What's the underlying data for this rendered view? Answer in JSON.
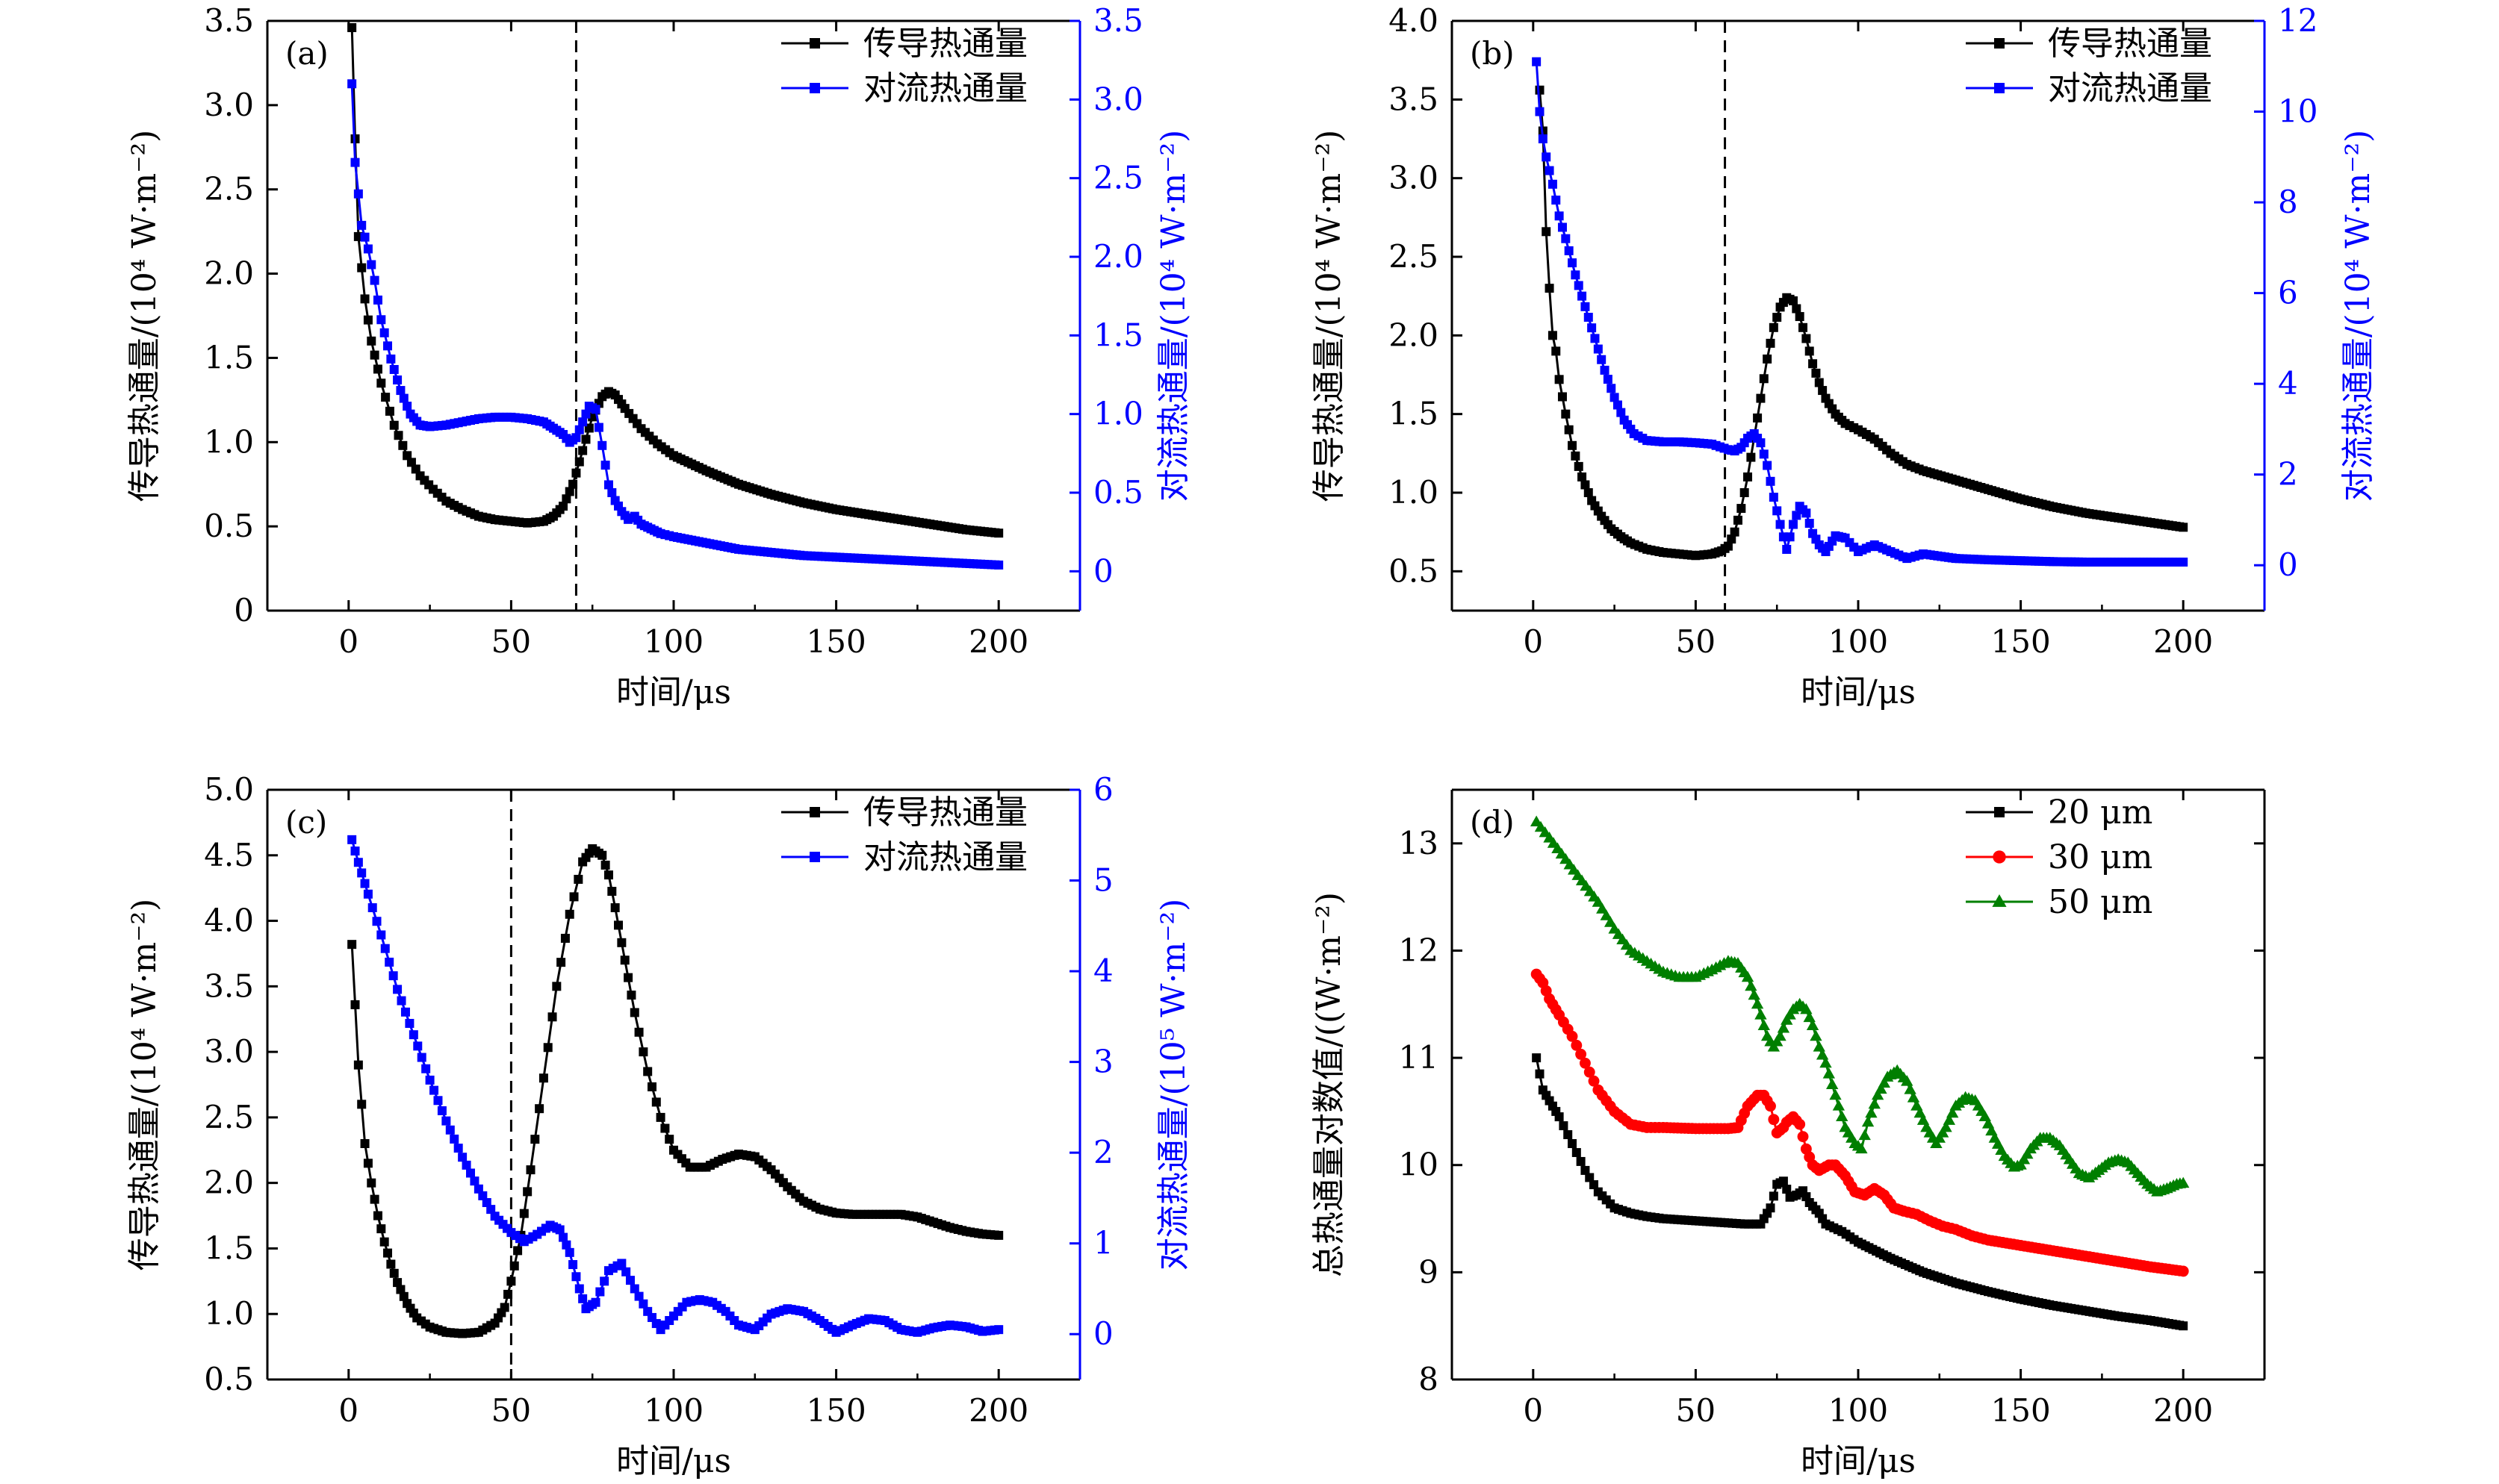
{
  "chart_data": [
    {
      "type": "line",
      "panel_label": "(a)",
      "xlabel": "时间/μs",
      "ylabel": "传导热通量/(10⁴ W·m⁻²)",
      "y2label": "对流热通量/(10⁴ W·m⁻²)",
      "xlim": [
        -25,
        225
      ],
      "ylim": [
        0,
        3.5
      ],
      "y2lim": [
        -0.25,
        3.5
      ],
      "xticks": [
        "0",
        "50",
        "100",
        "150",
        "200"
      ],
      "yticks": [
        "0",
        "0.5",
        "1.0",
        "1.5",
        "2.0",
        "2.5",
        "3.0",
        "3.5"
      ],
      "y2ticks": [
        "0",
        "0.5",
        "1.0",
        "1.5",
        "2.0",
        "2.5",
        "3.0",
        "3.5"
      ],
      "vline_x": 70,
      "legend_position": "top-right",
      "series": [
        {
          "name": "传导热通量",
          "axis": "left",
          "color": "#000000",
          "marker": "square",
          "x": [
            1,
            2,
            3,
            5,
            7,
            10,
            14,
            18,
            22,
            26,
            30,
            35,
            40,
            45,
            50,
            55,
            60,
            63,
            66,
            69,
            72,
            75,
            78,
            80,
            82,
            85,
            90,
            95,
            100,
            110,
            120,
            130,
            140,
            150,
            160,
            170,
            180,
            190,
            200
          ],
          "values": [
            3.46,
            2.8,
            2.22,
            1.85,
            1.6,
            1.35,
            1.1,
            0.92,
            0.8,
            0.72,
            0.65,
            0.6,
            0.56,
            0.54,
            0.53,
            0.52,
            0.53,
            0.56,
            0.62,
            0.75,
            0.95,
            1.15,
            1.27,
            1.3,
            1.28,
            1.2,
            1.08,
            0.99,
            0.92,
            0.83,
            0.75,
            0.69,
            0.64,
            0.6,
            0.57,
            0.54,
            0.51,
            0.48,
            0.46
          ]
        },
        {
          "name": "对流热通量",
          "axis": "right",
          "color": "#0000ff",
          "marker": "square",
          "x": [
            1,
            2,
            3,
            4,
            6,
            8,
            10,
            13,
            16,
            19,
            22,
            25,
            30,
            35,
            40,
            45,
            50,
            55,
            60,
            63,
            66,
            68,
            70,
            72,
            74,
            76,
            78,
            80,
            82,
            84,
            86,
            88,
            90,
            93,
            96,
            100,
            110,
            120,
            130,
            140,
            150,
            160,
            170,
            180,
            190,
            200
          ],
          "values": [
            3.1,
            2.6,
            2.4,
            2.2,
            2.05,
            1.85,
            1.6,
            1.35,
            1.15,
            1.0,
            0.93,
            0.92,
            0.93,
            0.95,
            0.97,
            0.98,
            0.98,
            0.97,
            0.95,
            0.91,
            0.87,
            0.82,
            0.85,
            0.95,
            1.05,
            1.03,
            0.8,
            0.55,
            0.45,
            0.38,
            0.33,
            0.35,
            0.3,
            0.27,
            0.24,
            0.22,
            0.18,
            0.14,
            0.12,
            0.1,
            0.09,
            0.08,
            0.07,
            0.06,
            0.05,
            0.04
          ]
        }
      ]
    },
    {
      "type": "line",
      "panel_label": "(b)",
      "xlabel": "时间/μs",
      "ylabel": "传导热通量/(10⁴ W·m⁻²)",
      "y2label": "对流热通量/(10⁴ W·m⁻²)",
      "xlim": [
        -25,
        225
      ],
      "ylim": [
        0.25,
        4.0
      ],
      "y2lim": [
        -1,
        12
      ],
      "xticks": [
        "0",
        "50",
        "100",
        "150",
        "200"
      ],
      "yticks": [
        "0.5",
        "1.0",
        "1.5",
        "2.0",
        "2.5",
        "3.0",
        "3.5",
        "4.0"
      ],
      "y2ticks": [
        "0",
        "2",
        "4",
        "6",
        "8",
        "10",
        "12"
      ],
      "vline_x": 59,
      "legend_position": "top-right",
      "series": [
        {
          "name": "传导热通量",
          "axis": "left",
          "color": "#000000",
          "marker": "square",
          "x": [
            2,
            3,
            4,
            5,
            6,
            7,
            8,
            10,
            12,
            15,
            18,
            21,
            24,
            27,
            30,
            35,
            40,
            45,
            50,
            55,
            58,
            60,
            62,
            64,
            66,
            68,
            70,
            72,
            74,
            76,
            78,
            80,
            82,
            84,
            86,
            88,
            90,
            93,
            96,
            100,
            105,
            110,
            115,
            120,
            130,
            140,
            150,
            160,
            170,
            180,
            190,
            200
          ],
          "values": [
            3.56,
            3.3,
            2.66,
            2.3,
            2.0,
            1.9,
            1.72,
            1.5,
            1.3,
            1.1,
            0.95,
            0.85,
            0.77,
            0.72,
            0.68,
            0.64,
            0.62,
            0.61,
            0.6,
            0.61,
            0.63,
            0.66,
            0.75,
            0.9,
            1.1,
            1.35,
            1.6,
            1.85,
            2.05,
            2.18,
            2.24,
            2.22,
            2.12,
            1.98,
            1.82,
            1.7,
            1.6,
            1.5,
            1.44,
            1.4,
            1.34,
            1.25,
            1.18,
            1.14,
            1.08,
            1.02,
            0.96,
            0.91,
            0.87,
            0.84,
            0.81,
            0.78
          ]
        },
        {
          "name": "对流热通量",
          "axis": "right",
          "color": "#0000ff",
          "marker": "square",
          "x": [
            1,
            2,
            3,
            4,
            6,
            8,
            10,
            13,
            16,
            19,
            22,
            25,
            28,
            31,
            35,
            40,
            45,
            50,
            55,
            60,
            62,
            64,
            66,
            68,
            70,
            72,
            74,
            76,
            78,
            80,
            82,
            84,
            86,
            88,
            90,
            93,
            96,
            100,
            105,
            110,
            115,
            120,
            130,
            140,
            150,
            160,
            170,
            180,
            190,
            200
          ],
          "values": [
            11.1,
            10.0,
            9.4,
            9.0,
            8.4,
            7.7,
            7.2,
            6.4,
            5.7,
            5.0,
            4.3,
            3.7,
            3.2,
            2.9,
            2.75,
            2.72,
            2.72,
            2.7,
            2.67,
            2.55,
            2.52,
            2.6,
            2.8,
            2.9,
            2.7,
            2.2,
            1.5,
            0.9,
            0.35,
            0.9,
            1.3,
            1.15,
            0.7,
            0.45,
            0.3,
            0.65,
            0.6,
            0.3,
            0.45,
            0.3,
            0.15,
            0.25,
            0.15,
            0.12,
            0.1,
            0.08,
            0.07,
            0.07,
            0.07,
            0.07
          ]
        }
      ]
    },
    {
      "type": "line",
      "panel_label": "(c)",
      "xlabel": "时间/μs",
      "ylabel": "传导热通量/(10⁴ W·m⁻²)",
      "y2label": "对流热通量/(10⁵ W·m⁻²)",
      "xlim": [
        -25,
        225
      ],
      "ylim": [
        0.5,
        5.0
      ],
      "y2lim": [
        -0.5,
        6
      ],
      "xticks": [
        "0",
        "50",
        "100",
        "150",
        "200"
      ],
      "yticks": [
        "0.5",
        "1.0",
        "1.5",
        "2.0",
        "2.5",
        "3.0",
        "3.5",
        "4.0",
        "4.5",
        "5.0"
      ],
      "y2ticks": [
        "0",
        "1",
        "2",
        "3",
        "4",
        "5",
        "6"
      ],
      "vline_x": 50,
      "legend_position": "top-right",
      "series": [
        {
          "name": "传导热通量",
          "axis": "left",
          "color": "#000000",
          "marker": "square",
          "x": [
            1,
            3,
            5,
            7,
            9,
            11,
            13,
            15,
            18,
            21,
            25,
            30,
            35,
            40,
            45,
            48,
            50,
            53,
            56,
            60,
            64,
            68,
            72,
            75,
            78,
            80,
            82,
            85,
            88,
            92,
            96,
            100,
            105,
            110,
            115,
            120,
            125,
            130,
            135,
            140,
            145,
            150,
            155,
            160,
            170,
            175,
            180,
            185,
            190,
            195,
            200
          ],
          "values": [
            3.82,
            2.9,
            2.3,
            2.0,
            1.75,
            1.55,
            1.38,
            1.24,
            1.08,
            0.97,
            0.9,
            0.86,
            0.85,
            0.86,
            0.93,
            1.05,
            1.25,
            1.6,
            2.1,
            2.8,
            3.5,
            4.05,
            4.45,
            4.55,
            4.5,
            4.35,
            4.1,
            3.7,
            3.3,
            2.85,
            2.5,
            2.25,
            2.12,
            2.12,
            2.18,
            2.22,
            2.2,
            2.1,
            1.97,
            1.86,
            1.8,
            1.77,
            1.76,
            1.76,
            1.76,
            1.74,
            1.7,
            1.66,
            1.63,
            1.61,
            1.6
          ]
        },
        {
          "name": "对流热通量",
          "axis": "right",
          "color": "#0000ff",
          "marker": "square",
          "x": [
            1,
            3,
            6,
            10,
            15,
            20,
            25,
            30,
            35,
            40,
            45,
            50,
            54,
            58,
            62,
            65,
            68,
            71,
            73,
            76,
            80,
            84,
            88,
            92,
            96,
            100,
            104,
            108,
            112,
            116,
            120,
            125,
            130,
            135,
            140,
            145,
            150,
            155,
            160,
            165,
            170,
            175,
            180,
            185,
            190,
            195,
            200
          ],
          "values": [
            5.45,
            5.2,
            4.85,
            4.4,
            3.8,
            3.3,
            2.8,
            2.35,
            1.95,
            1.6,
            1.3,
            1.12,
            1.02,
            1.1,
            1.2,
            1.15,
            0.9,
            0.5,
            0.28,
            0.35,
            0.7,
            0.78,
            0.5,
            0.25,
            0.05,
            0.2,
            0.35,
            0.38,
            0.35,
            0.25,
            0.1,
            0.05,
            0.22,
            0.28,
            0.25,
            0.15,
            0.02,
            0.1,
            0.17,
            0.15,
            0.05,
            0.02,
            0.07,
            0.1,
            0.08,
            0.03,
            0.05
          ]
        }
      ]
    },
    {
      "type": "line",
      "panel_label": "(d)",
      "xlabel": "时间/μs",
      "ylabel": "总热通量对数值/((W·m⁻²)",
      "xlim": [
        -25,
        225
      ],
      "ylim": [
        8,
        13.5
      ],
      "xticks": [
        "0",
        "50",
        "100",
        "150",
        "200"
      ],
      "yticks": [
        "8",
        "9",
        "10",
        "11",
        "12",
        "13"
      ],
      "legend_position": "top-right",
      "series": [
        {
          "name": "20 μm",
          "axis": "left",
          "color": "#000000",
          "marker": "square",
          "x": [
            1,
            3,
            5,
            8,
            12,
            16,
            20,
            25,
            30,
            35,
            40,
            50,
            60,
            65,
            70,
            73,
            75,
            77,
            79,
            81,
            83,
            85,
            88,
            90,
            95,
            100,
            110,
            120,
            130,
            140,
            150,
            160,
            170,
            180,
            190,
            200
          ],
          "values": [
            11.0,
            10.7,
            10.6,
            10.45,
            10.2,
            9.95,
            9.75,
            9.6,
            9.55,
            9.52,
            9.5,
            9.48,
            9.46,
            9.45,
            9.45,
            9.6,
            9.82,
            9.85,
            9.7,
            9.72,
            9.76,
            9.65,
            9.55,
            9.45,
            9.38,
            9.28,
            9.13,
            9.0,
            8.9,
            8.82,
            8.75,
            8.69,
            8.64,
            8.59,
            8.55,
            8.5
          ]
        },
        {
          "name": "30 μm",
          "axis": "left",
          "color": "#ff0000",
          "marker": "circle",
          "x": [
            1,
            3,
            5,
            8,
            12,
            16,
            20,
            25,
            30,
            35,
            40,
            50,
            60,
            63,
            66,
            69,
            71,
            73,
            75,
            77,
            78,
            80,
            82,
            84,
            86,
            88,
            91,
            93,
            96,
            99,
            102,
            105,
            108,
            111,
            114,
            118,
            122,
            126,
            130,
            135,
            140,
            150,
            160,
            170,
            180,
            190,
            200
          ],
          "values": [
            11.78,
            11.7,
            11.55,
            11.4,
            11.2,
            10.95,
            10.7,
            10.5,
            10.38,
            10.35,
            10.35,
            10.34,
            10.34,
            10.35,
            10.55,
            10.65,
            10.65,
            10.55,
            10.3,
            10.35,
            10.4,
            10.45,
            10.38,
            10.15,
            10.0,
            9.95,
            10.0,
            10.0,
            9.9,
            9.75,
            9.72,
            9.78,
            9.72,
            9.6,
            9.57,
            9.54,
            9.48,
            9.43,
            9.4,
            9.34,
            9.3,
            9.25,
            9.2,
            9.15,
            9.1,
            9.05,
            9.01
          ]
        },
        {
          "name": "50 μm",
          "axis": "left",
          "color": "#007f00",
          "marker": "triangle",
          "x": [
            1,
            5,
            10,
            15,
            20,
            25,
            30,
            35,
            40,
            45,
            50,
            55,
            60,
            63,
            66,
            69,
            72,
            74,
            76,
            78,
            80,
            82,
            84,
            86,
            88,
            90,
            93,
            96,
            99,
            101,
            103,
            106,
            109,
            112,
            115,
            118,
            121,
            124,
            127,
            130,
            133,
            136,
            139,
            142,
            145,
            148,
            150,
            153,
            156,
            159,
            162,
            165,
            168,
            171,
            174,
            177,
            180,
            183,
            186,
            189,
            192,
            195,
            198,
            200
          ],
          "values": [
            13.2,
            13.05,
            12.85,
            12.65,
            12.45,
            12.2,
            12.0,
            11.9,
            11.8,
            11.75,
            11.75,
            11.82,
            11.9,
            11.88,
            11.75,
            11.5,
            11.2,
            11.1,
            11.2,
            11.35,
            11.45,
            11.5,
            11.45,
            11.3,
            11.1,
            10.95,
            10.65,
            10.35,
            10.2,
            10.15,
            10.4,
            10.65,
            10.82,
            10.88,
            10.78,
            10.55,
            10.35,
            10.2,
            10.35,
            10.55,
            10.63,
            10.6,
            10.45,
            10.25,
            10.08,
            9.98,
            10.0,
            10.15,
            10.25,
            10.25,
            10.18,
            10.05,
            9.92,
            9.88,
            9.95,
            10.02,
            10.05,
            10.02,
            9.92,
            9.82,
            9.75,
            9.78,
            9.82,
            9.83
          ]
        }
      ]
    }
  ]
}
